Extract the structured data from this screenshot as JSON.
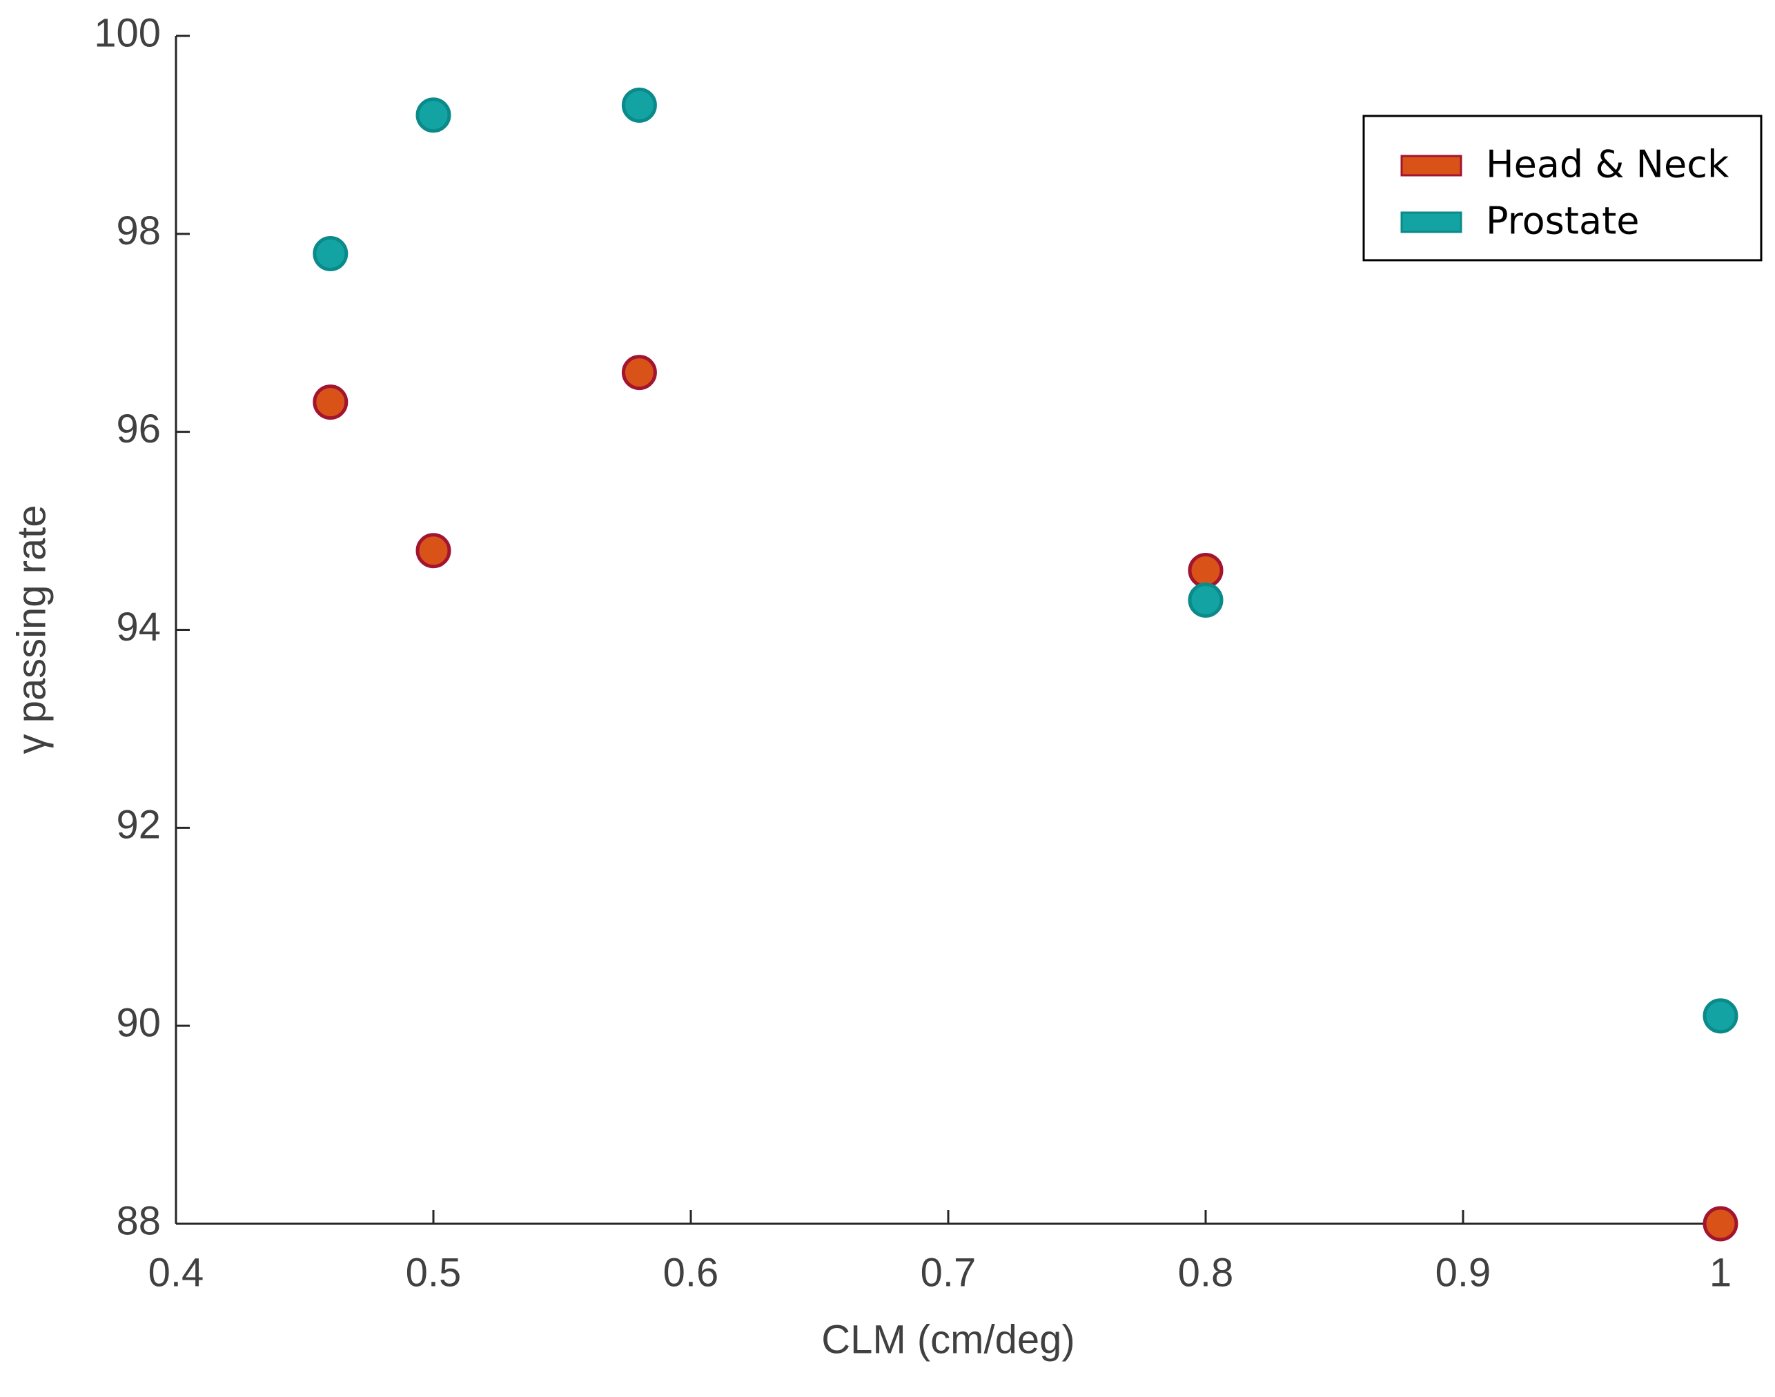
{
  "chart_data": {
    "type": "scatter",
    "xlabel": "CLM (cm/deg)",
    "ylabel": "γ passing rate",
    "xlim": [
      0.4,
      1
    ],
    "xticks": [
      0.4,
      0.5,
      0.6,
      0.7,
      0.8,
      0.9,
      1
    ],
    "ylim": [
      88,
      100
    ],
    "yticks": [
      88,
      90,
      92,
      94,
      96,
      98,
      100
    ],
    "legend": "upper right",
    "series": [
      {
        "name": "Head & Neck",
        "color": "#d95319",
        "edgecolor": "#a2142f",
        "x": [
          0.46,
          0.5,
          0.58,
          0.8,
          1
        ],
        "values": [
          96.3,
          94.8,
          96.6,
          94.6,
          88.0
        ]
      },
      {
        "name": "Prostate",
        "color": "#13a3a3",
        "edgecolor": "#0b8a8a",
        "x": [
          0.46,
          0.5,
          0.58,
          0.8,
          1
        ],
        "values": [
          97.8,
          99.2,
          99.3,
          94.3,
          90.1
        ]
      }
    ]
  }
}
